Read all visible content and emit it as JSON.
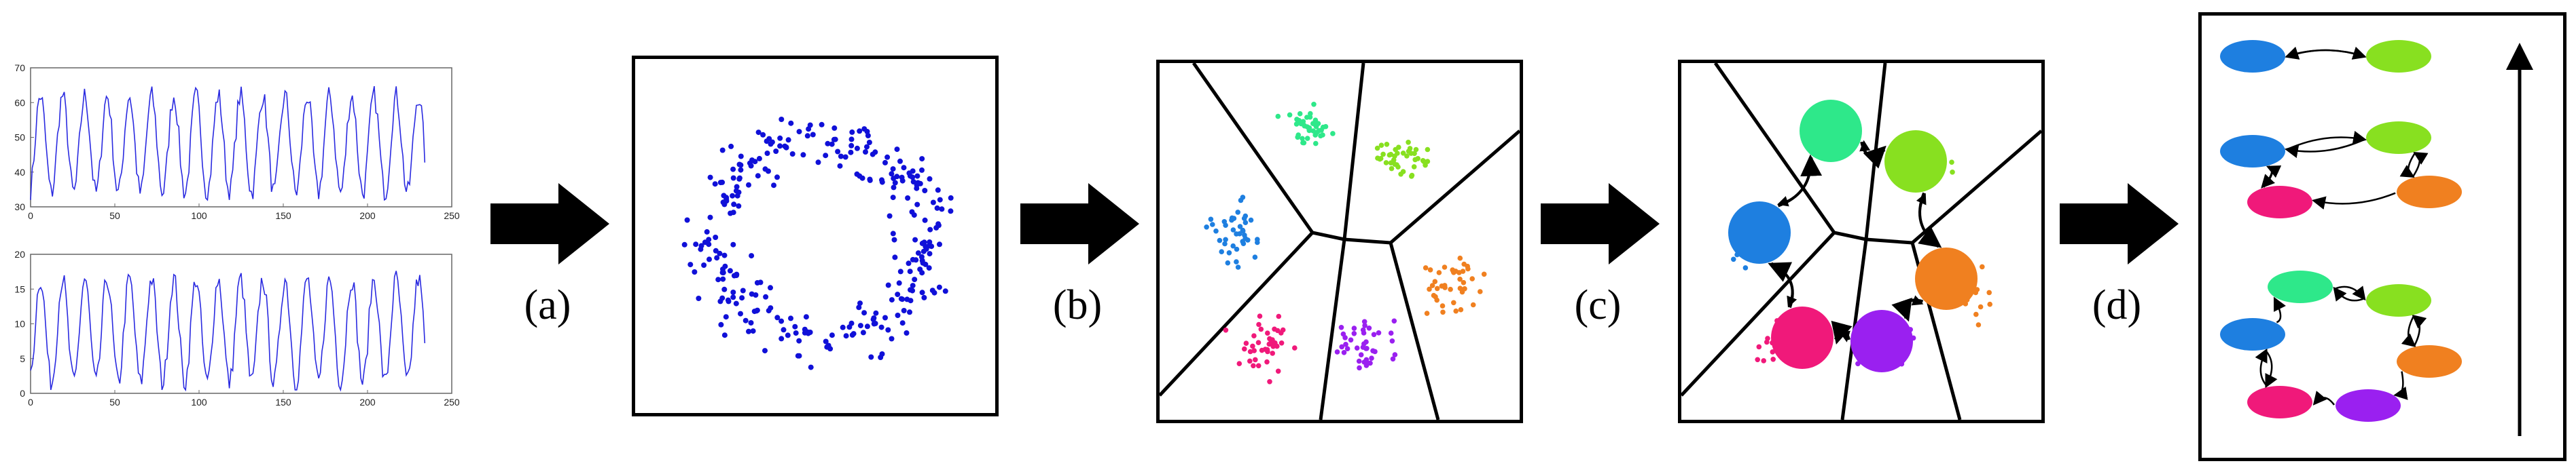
{
  "steps": [
    {
      "label": "(a)"
    },
    {
      "label": "(b)"
    },
    {
      "label": "(c)"
    },
    {
      "label": "(d)"
    }
  ],
  "timeseries_plots": {
    "top": {
      "y_ticks": [
        "70",
        "60",
        "50",
        "40",
        "30"
      ],
      "x_ticks": [
        "0",
        "50",
        "100",
        "150",
        "200",
        "250"
      ],
      "ylim": [
        30,
        70
      ],
      "xlim": [
        0,
        250
      ]
    },
    "bottom": {
      "y_ticks": [
        "20",
        "15",
        "10",
        "5",
        "0"
      ],
      "x_ticks": [
        "0",
        "50",
        "100",
        "150",
        "200",
        "250"
      ],
      "ylim": [
        0,
        20
      ],
      "xlim": [
        0,
        250
      ]
    }
  },
  "colors": {
    "points": "#1010d8",
    "cluster_blue": "#1e7fe0",
    "cluster_green_teal": "#2ee88a",
    "cluster_lime": "#88e020",
    "cluster_orange": "#f08020",
    "cluster_magenta": "#f0197a",
    "cluster_purple": "#9a20f0",
    "series_line": "#2a2ae0",
    "arrow": "#000000"
  },
  "hierarchy_levels": [
    {
      "states": [
        "blue",
        "lime"
      ]
    },
    {
      "states": [
        "blue",
        "lime",
        "magenta",
        "orange"
      ]
    },
    {
      "states": [
        "green",
        "lime",
        "blue",
        "orange",
        "magenta",
        "purple"
      ]
    }
  ]
}
